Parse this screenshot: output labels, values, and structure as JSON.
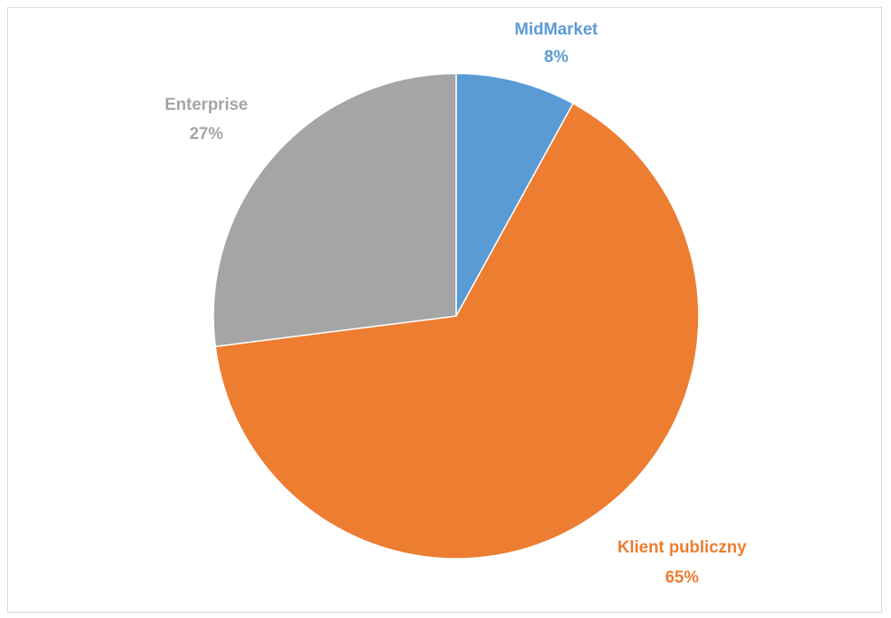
{
  "chart_data": {
    "type": "pie",
    "categories": [
      "MidMarket",
      "Klient publiczny",
      "Enterprise"
    ],
    "values": [
      8,
      65,
      27
    ],
    "value_labels": [
      "8%",
      "65%",
      "27%"
    ],
    "colors": [
      "#5b9bd5",
      "#ed7d31",
      "#a5a5a5"
    ],
    "start_angle_deg": 0,
    "direction": "clockwise",
    "legend": "none",
    "labels_position": "outside"
  }
}
